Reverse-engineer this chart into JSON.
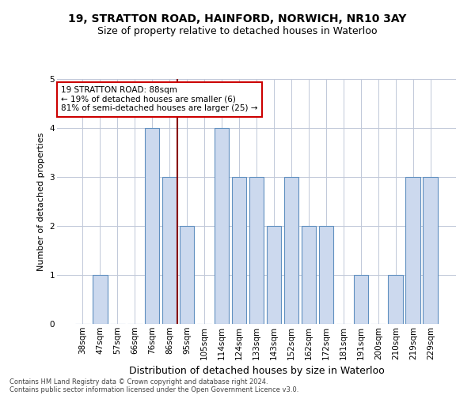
{
  "title1": "19, STRATTON ROAD, HAINFORD, NORWICH, NR10 3AY",
  "title2": "Size of property relative to detached houses in Waterloo",
  "xlabel": "Distribution of detached houses by size in Waterloo",
  "ylabel": "Number of detached properties",
  "categories": [
    "38sqm",
    "47sqm",
    "57sqm",
    "66sqm",
    "76sqm",
    "86sqm",
    "95sqm",
    "105sqm",
    "114sqm",
    "124sqm",
    "133sqm",
    "143sqm",
    "152sqm",
    "162sqm",
    "172sqm",
    "181sqm",
    "191sqm",
    "200sqm",
    "210sqm",
    "219sqm",
    "229sqm"
  ],
  "values": [
    0,
    1,
    0,
    0,
    4,
    3,
    2,
    0,
    4,
    3,
    3,
    2,
    3,
    2,
    2,
    0,
    1,
    0,
    1,
    3,
    3
  ],
  "bar_color": "#ccd9ee",
  "bar_edge_color": "#6090c0",
  "subject_line_index": 5.45,
  "subject_line_color": "#880000",
  "annotation_text": "19 STRATTON ROAD: 88sqm\n← 19% of detached houses are smaller (6)\n81% of semi-detached houses are larger (25) →",
  "annotation_box_color": "#ffffff",
  "annotation_box_edge": "#cc0000",
  "ylim": [
    0,
    5
  ],
  "yticks": [
    0,
    1,
    2,
    3,
    4,
    5
  ],
  "footer1": "Contains HM Land Registry data © Crown copyright and database right 2024.",
  "footer2": "Contains public sector information licensed under the Open Government Licence v3.0.",
  "bg_color": "#ffffff",
  "grid_color": "#c0c8d8",
  "title1_fontsize": 10,
  "title2_fontsize": 9,
  "ylabel_fontsize": 8,
  "xlabel_fontsize": 9,
  "tick_fontsize": 7.5,
  "footer_fontsize": 6.0
}
